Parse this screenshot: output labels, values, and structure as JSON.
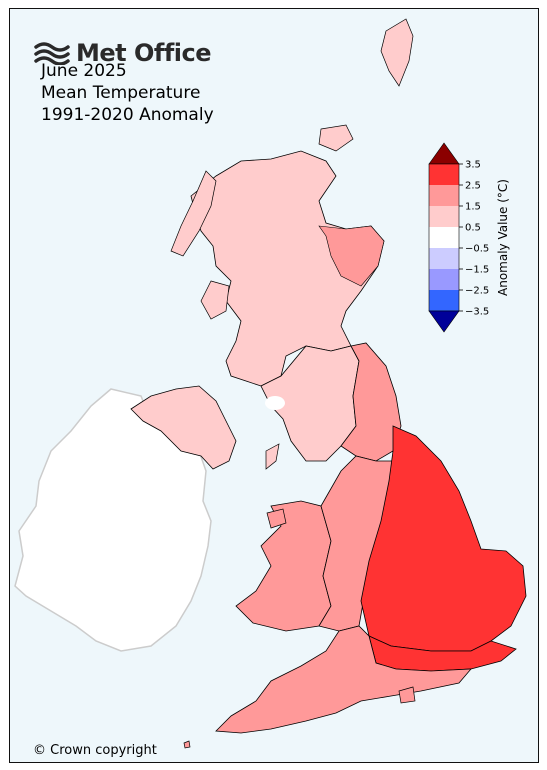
{
  "brand": {
    "name": "Met Office",
    "logo_icon": "met-office-waves-icon"
  },
  "title": {
    "line1": "June 2025",
    "line2": "Mean Temperature",
    "line3": "1991-2020 Anomaly"
  },
  "copyright": "© Crown copyright",
  "colors": {
    "sea": "#eef7fb",
    "ireland_fill": "#ffffff",
    "ireland_border": "#cccccc",
    "border": "#000000"
  },
  "legend": {
    "title": "Anomaly Value (°C)",
    "ticks": [
      "3.5",
      "2.5",
      "1.5",
      "0.5",
      "−0.5",
      "−1.5",
      "−2.5",
      "−3.5"
    ],
    "bins": [
      {
        "range": "> 3.5",
        "color": "#8b0000"
      },
      {
        "range": "2.5 to 3.5",
        "color": "#ff3333"
      },
      {
        "range": "1.5 to 2.5",
        "color": "#ff9999"
      },
      {
        "range": "0.5 to 1.5",
        "color": "#ffcccc"
      },
      {
        "range": "-0.5 to 0.5",
        "color": "#ffffff"
      },
      {
        "range": "-1.5 to -0.5",
        "color": "#ccccff"
      },
      {
        "range": "-2.5 to -1.5",
        "color": "#9999ff"
      },
      {
        "range": "-3.5 to -2.5",
        "color": "#3366ff"
      },
      {
        "range": "< -3.5",
        "color": "#000099"
      }
    ]
  },
  "regions": [
    {
      "name": "Scotland",
      "anomaly_bin": "0.5 to 1.5"
    },
    {
      "name": "North East Scotland",
      "anomaly_bin": "1.5 to 2.5"
    },
    {
      "name": "Northern Ireland",
      "anomaly_bin": "0.5 to 1.5"
    },
    {
      "name": "North West England",
      "anomaly_bin": "0.5 to 1.5"
    },
    {
      "name": "North East England",
      "anomaly_bin": "1.5 to 2.5"
    },
    {
      "name": "Wales",
      "anomaly_bin": "1.5 to 2.5"
    },
    {
      "name": "West Midlands",
      "anomaly_bin": "1.5 to 2.5"
    },
    {
      "name": "Eastern England",
      "anomaly_bin": "2.5 to 3.5"
    },
    {
      "name": "South East England",
      "anomaly_bin": "2.5 to 3.5"
    },
    {
      "name": "South West England",
      "anomaly_bin": "1.5 to 2.5"
    }
  ]
}
